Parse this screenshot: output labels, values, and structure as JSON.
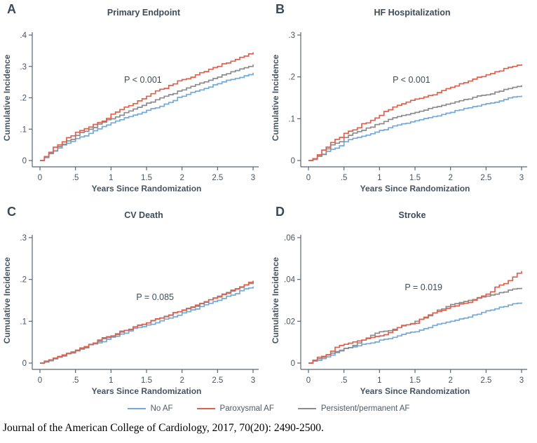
{
  "figure": {
    "legend": {
      "items": [
        {
          "label": "No AF",
          "color": "#74a9d8"
        },
        {
          "label": "Paroxysmal AF",
          "color": "#e0604e"
        },
        {
          "label": "Persistent/permanent AF",
          "color": "#8c8c8c"
        }
      ]
    },
    "citation": "Journal of the American College of Cardiology, 2017, 70(20): 2490-2500.",
    "axis_color": "#5b6670",
    "text_color": "#47545f"
  },
  "chart_data": [
    {
      "type": "line",
      "panel": "A",
      "title": "Primary Endpoint",
      "xlabel": "Years Since Randomization",
      "ylabel": "Cumulative Incidence",
      "xlim": [
        0,
        3
      ],
      "ylim": [
        0,
        0.4
      ],
      "xticks": {
        "values": [
          0,
          0.5,
          1,
          1.5,
          2,
          2.5,
          3
        ],
        "labels": [
          "0",
          ".5",
          "1",
          "1.5",
          "2",
          "2.5",
          "3"
        ]
      },
      "yticks": {
        "values": [
          0,
          0.1,
          0.2,
          0.3,
          0.4
        ],
        "labels": [
          "0",
          ".1",
          ".2",
          ".3",
          ".4"
        ]
      },
      "p_label": "P < 0.001",
      "p_pos": {
        "x": 1.45,
        "y": 0.253
      },
      "grid": false,
      "x": [
        0,
        0.25,
        0.5,
        0.75,
        1,
        1.25,
        1.5,
        1.75,
        2,
        2.25,
        2.5,
        2.75,
        3
      ],
      "series": [
        {
          "name": "No AF",
          "color": "#74a9d8",
          "values": [
            0,
            0.04,
            0.07,
            0.095,
            0.12,
            0.14,
            0.16,
            0.18,
            0.205,
            0.225,
            0.245,
            0.262,
            0.28
          ]
        },
        {
          "name": "Paroxysmal AF",
          "color": "#e0604e",
          "values": [
            0,
            0.05,
            0.09,
            0.115,
            0.148,
            0.175,
            0.205,
            0.23,
            0.258,
            0.28,
            0.3,
            0.322,
            0.345
          ]
        },
        {
          "name": "Persistent/permanent AF",
          "color": "#8c8c8c",
          "values": [
            0,
            0.045,
            0.08,
            0.105,
            0.133,
            0.158,
            0.183,
            0.205,
            0.225,
            0.247,
            0.266,
            0.287,
            0.306
          ]
        }
      ]
    },
    {
      "type": "line",
      "panel": "B",
      "title": "HF Hospitalization",
      "xlabel": "Years Since Randomization",
      "ylabel": "Cumulative Incidence",
      "xlim": [
        0,
        3
      ],
      "ylim": [
        0,
        0.3
      ],
      "xticks": {
        "values": [
          0,
          0.5,
          1,
          1.5,
          2,
          2.5,
          3
        ],
        "labels": [
          "0",
          ".5",
          "1",
          "1.5",
          "2",
          "2.5",
          "3"
        ]
      },
      "yticks": {
        "values": [
          0,
          0.1,
          0.2,
          0.3
        ],
        "labels": [
          "0",
          ".1",
          ".2",
          ".3"
        ]
      },
      "p_label": "P < 0.001",
      "p_pos": {
        "x": 1.45,
        "y": 0.19
      },
      "grid": false,
      "x": [
        0,
        0.25,
        0.5,
        0.75,
        1,
        1.25,
        1.5,
        1.75,
        2,
        2.25,
        2.5,
        2.75,
        3
      ],
      "series": [
        {
          "name": "No AF",
          "color": "#74a9d8",
          "values": [
            0,
            0.022,
            0.045,
            0.058,
            0.072,
            0.085,
            0.095,
            0.105,
            0.115,
            0.126,
            0.136,
            0.146,
            0.155
          ]
        },
        {
          "name": "Paroxysmal AF",
          "color": "#e0604e",
          "values": [
            0,
            0.032,
            0.065,
            0.088,
            0.108,
            0.132,
            0.147,
            0.157,
            0.175,
            0.19,
            0.205,
            0.22,
            0.23
          ]
        },
        {
          "name": "Persistent/permanent AF",
          "color": "#8c8c8c",
          "values": [
            0,
            0.028,
            0.055,
            0.072,
            0.088,
            0.105,
            0.115,
            0.127,
            0.137,
            0.147,
            0.157,
            0.17,
            0.18
          ]
        }
      ]
    },
    {
      "type": "line",
      "panel": "C",
      "title": "CV Death",
      "xlabel": "Years Since Randomization",
      "ylabel": "Cumulative Incidence",
      "xlim": [
        0,
        3
      ],
      "ylim": [
        0,
        0.3
      ],
      "xticks": {
        "values": [
          0,
          0.5,
          1,
          1.5,
          2,
          2.5,
          3
        ],
        "labels": [
          "0",
          ".5",
          "1",
          "1.5",
          "2",
          "2.5",
          "3"
        ]
      },
      "yticks": {
        "values": [
          0,
          0.1,
          0.2,
          0.3
        ],
        "labels": [
          "0",
          ".1",
          ".2",
          ".3"
        ]
      },
      "p_label": "P = 0.085",
      "p_pos": {
        "x": 1.62,
        "y": 0.155
      },
      "grid": false,
      "x": [
        0,
        0.25,
        0.5,
        0.75,
        1,
        1.25,
        1.5,
        1.75,
        2,
        2.25,
        2.5,
        2.75,
        3
      ],
      "series": [
        {
          "name": "No AF",
          "color": "#74a9d8",
          "values": [
            0,
            0.014,
            0.029,
            0.046,
            0.062,
            0.077,
            0.091,
            0.105,
            0.12,
            0.135,
            0.15,
            0.166,
            0.183
          ]
        },
        {
          "name": "Paroxysmal AF",
          "color": "#e0604e",
          "values": [
            0,
            0.016,
            0.031,
            0.048,
            0.065,
            0.081,
            0.096,
            0.111,
            0.126,
            0.142,
            0.158,
            0.177,
            0.197
          ]
        },
        {
          "name": "Persistent/permanent AF",
          "color": "#8c8c8c",
          "values": [
            0,
            0.015,
            0.03,
            0.047,
            0.064,
            0.08,
            0.096,
            0.112,
            0.127,
            0.143,
            0.16,
            0.178,
            0.195
          ]
        }
      ]
    },
    {
      "type": "line",
      "panel": "D",
      "title": "Stroke",
      "xlabel": "Years Since Randomization",
      "ylabel": "Cumulative Incidence",
      "xlim": [
        0,
        3
      ],
      "ylim": [
        0,
        0.06
      ],
      "xticks": {
        "values": [
          0,
          0.5,
          1,
          1.5,
          2,
          2.5,
          3
        ],
        "labels": [
          "0",
          ".5",
          "1",
          "1.5",
          "2",
          "2.5",
          "3"
        ]
      },
      "yticks": {
        "values": [
          0,
          0.02,
          0.04,
          0.06
        ],
        "labels": [
          "0",
          ".02",
          ".04",
          ".06"
        ]
      },
      "p_label": "P = 0.019",
      "p_pos": {
        "x": 1.62,
        "y": 0.0355
      },
      "grid": false,
      "x": [
        0,
        0.25,
        0.5,
        0.75,
        1,
        1.25,
        1.5,
        1.75,
        2,
        2.25,
        2.5,
        2.75,
        3
      ],
      "series": [
        {
          "name": "No AF",
          "color": "#74a9d8",
          "values": [
            0,
            0.003,
            0.007,
            0.009,
            0.011,
            0.013,
            0.015,
            0.018,
            0.02,
            0.022,
            0.025,
            0.027,
            0.029
          ]
        },
        {
          "name": "Paroxysmal AF",
          "color": "#e0604e",
          "values": [
            0,
            0.004,
            0.009,
            0.011,
            0.013,
            0.017,
            0.019,
            0.024,
            0.027,
            0.029,
            0.033,
            0.038,
            0.044
          ]
        },
        {
          "name": "Persistent/permanent AF",
          "color": "#8c8c8c",
          "values": [
            0,
            0.004,
            0.007,
            0.011,
            0.015,
            0.017,
            0.02,
            0.024,
            0.028,
            0.03,
            0.032,
            0.034,
            0.036
          ]
        }
      ]
    }
  ]
}
